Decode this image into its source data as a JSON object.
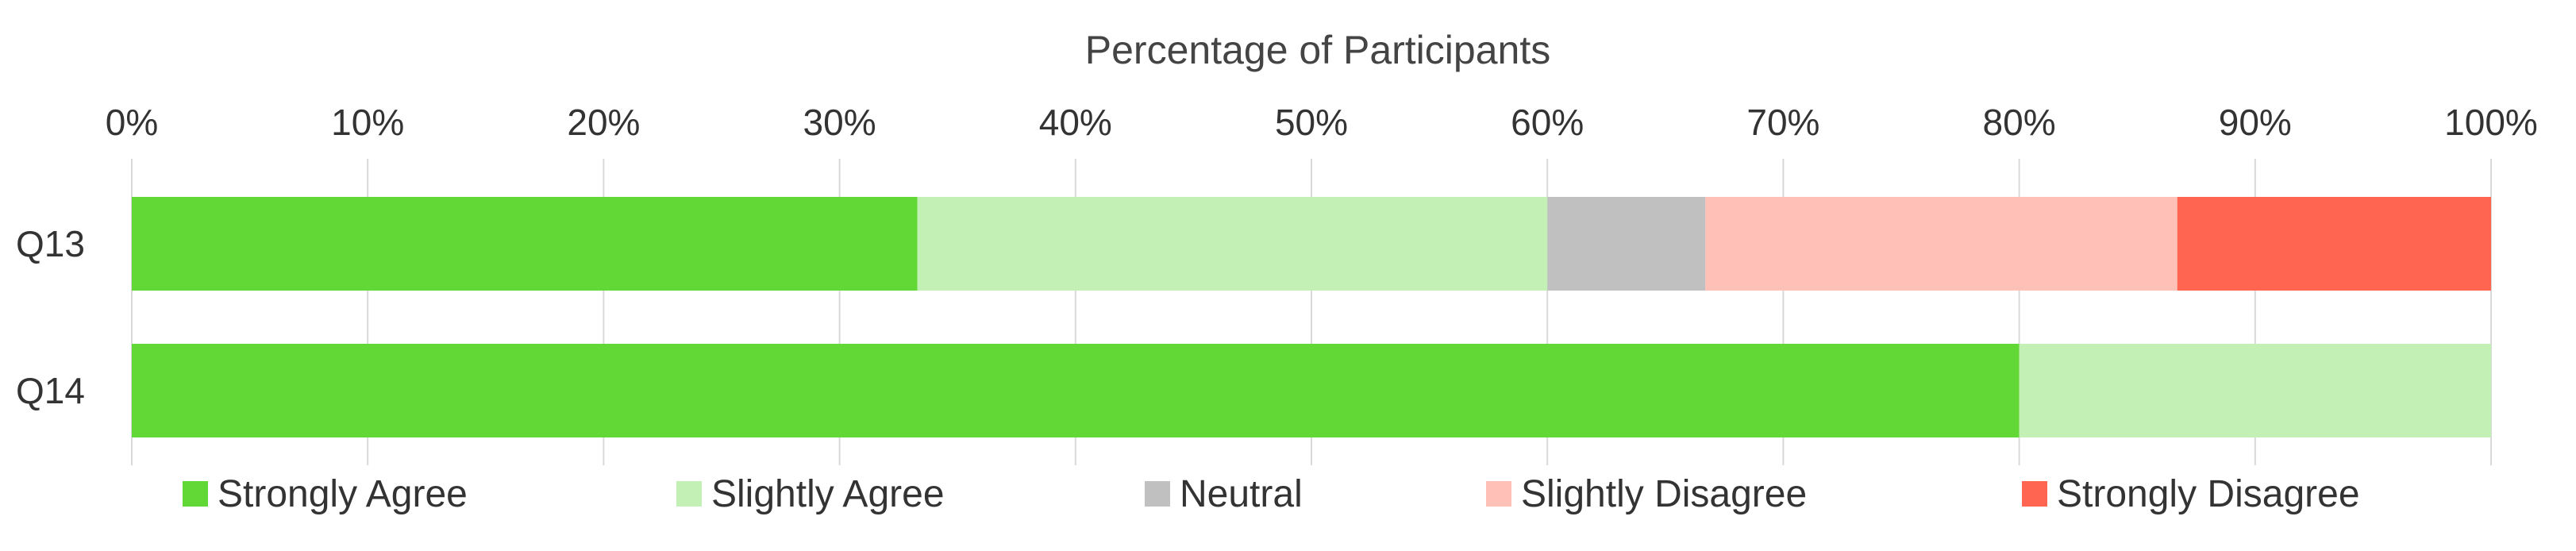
{
  "chart_data": {
    "type": "bar",
    "orientation": "horizontal",
    "stacked": true,
    "title": "",
    "xlabel": "Percentage of Participants",
    "ylabel": "",
    "xlim": [
      0,
      100
    ],
    "x_ticks": [
      "0%",
      "10%",
      "20%",
      "30%",
      "40%",
      "50%",
      "60%",
      "70%",
      "80%",
      "90%",
      "100%"
    ],
    "x_tick_values": [
      0,
      10,
      20,
      30,
      40,
      50,
      60,
      70,
      80,
      90,
      100
    ],
    "x_axis_position": "top",
    "grid": true,
    "legend_position": "bottom",
    "categories": [
      "Q13",
      "Q14"
    ],
    "series": [
      {
        "name": "Strongly Agree",
        "color": "#62d837",
        "values": [
          33.3,
          80
        ]
      },
      {
        "name": "Slightly Agree",
        "color": "#c3f0b4",
        "values": [
          26.7,
          20
        ]
      },
      {
        "name": "Neutral",
        "color": "#c0c0c0",
        "values": [
          6.7,
          0
        ]
      },
      {
        "name": "Slightly Disagree",
        "color": "#ffc0b8",
        "values": [
          20,
          0
        ]
      },
      {
        "name": "Strongly Disagree",
        "color": "#ff6550",
        "values": [
          13.3,
          0
        ]
      }
    ]
  }
}
